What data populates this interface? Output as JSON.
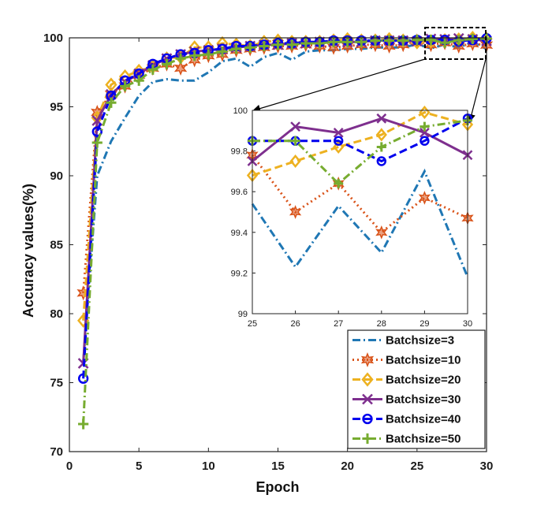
{
  "chart_data": {
    "type": "line",
    "xlabel": "Epoch",
    "ylabel": "Accuracy values(%)",
    "xlim": [
      0,
      30
    ],
    "ylim": [
      70,
      100
    ],
    "xticks": [
      "0",
      "5",
      "10",
      "15",
      "20",
      "25",
      "30"
    ],
    "yticks": [
      "70",
      "75",
      "80",
      "85",
      "90",
      "95",
      "100"
    ],
    "grid": false,
    "legend_position": "bottom-right",
    "series": [
      {
        "name": "Batchsize=3",
        "color": "#1f77b4",
        "linestyle": "dashdot",
        "marker": "none",
        "x": [
          1,
          2,
          3,
          4,
          5,
          6,
          7,
          8,
          9,
          10,
          11,
          12,
          13,
          14,
          15,
          16,
          17,
          18,
          19,
          20,
          21,
          22,
          23,
          24,
          25,
          26,
          27,
          28,
          29,
          30
        ],
        "y": [
          76.5,
          90.0,
          92.5,
          94.2,
          95.8,
          96.8,
          97.0,
          96.9,
          96.9,
          97.5,
          98.3,
          98.5,
          97.9,
          98.6,
          98.9,
          98.4,
          99.0,
          99.1,
          99.1,
          99.2,
          99.2,
          99.3,
          99.3,
          99.3,
          99.54,
          99.23,
          99.53,
          99.3,
          99.7,
          99.18
        ]
      },
      {
        "name": "Batchsize=10",
        "color": "#d95319",
        "linestyle": "dotted",
        "marker": "star",
        "x": [
          1,
          2,
          3,
          4,
          5,
          6,
          7,
          8,
          9,
          10,
          11,
          12,
          13,
          14,
          15,
          16,
          17,
          18,
          19,
          20,
          21,
          22,
          23,
          24,
          25,
          26,
          27,
          28,
          29,
          30
        ],
        "y": [
          81.5,
          94.6,
          95.9,
          96.5,
          97.3,
          97.8,
          98.1,
          97.8,
          98.4,
          98.7,
          98.8,
          99.1,
          99.2,
          99.3,
          99.4,
          99.4,
          99.5,
          99.4,
          99.3,
          99.4,
          99.5,
          99.5,
          99.4,
          99.5,
          99.78,
          99.5,
          99.64,
          99.4,
          99.57,
          99.47
        ]
      },
      {
        "name": "Batchsize=20",
        "color": "#edb120",
        "linestyle": "dashed",
        "marker": "diamond",
        "x": [
          1,
          2,
          3,
          4,
          5,
          6,
          7,
          8,
          9,
          10,
          11,
          12,
          13,
          14,
          15,
          16,
          17,
          18,
          19,
          20,
          21,
          22,
          23,
          24,
          25,
          26,
          27,
          28,
          29,
          30
        ],
        "y": [
          79.5,
          94.2,
          96.6,
          97.2,
          97.6,
          97.9,
          98.5,
          98.6,
          99.3,
          99.3,
          99.6,
          99.5,
          99.4,
          99.7,
          99.8,
          99.7,
          99.7,
          99.7,
          99.8,
          99.9,
          99.8,
          99.8,
          99.9,
          99.8,
          99.68,
          99.75,
          99.82,
          99.88,
          99.99,
          99.93
        ]
      },
      {
        "name": "Batchsize=30",
        "color": "#7e2f8e",
        "linestyle": "solid",
        "marker": "x",
        "x": [
          1,
          2,
          3,
          4,
          5,
          6,
          7,
          8,
          9,
          10,
          11,
          12,
          13,
          14,
          15,
          16,
          17,
          18,
          19,
          20,
          21,
          22,
          23,
          24,
          25,
          26,
          27,
          28,
          29,
          30
        ],
        "y": [
          76.4,
          94.0,
          95.9,
          96.8,
          97.4,
          98.0,
          98.5,
          98.8,
          99.0,
          99.1,
          99.2,
          99.3,
          99.4,
          99.5,
          99.5,
          99.6,
          99.6,
          99.7,
          99.7,
          99.7,
          99.7,
          99.8,
          99.8,
          99.8,
          99.75,
          99.92,
          99.89,
          99.96,
          99.89,
          99.78
        ]
      },
      {
        "name": "Batchsize=40",
        "color": "#0000ee",
        "linestyle": "dashed",
        "marker": "circle",
        "x": [
          1,
          2,
          3,
          4,
          5,
          6,
          7,
          8,
          9,
          10,
          11,
          12,
          13,
          14,
          15,
          16,
          17,
          18,
          19,
          20,
          21,
          22,
          23,
          24,
          25,
          26,
          27,
          28,
          29,
          30
        ],
        "y": [
          75.3,
          93.2,
          95.8,
          96.9,
          97.4,
          98.1,
          98.5,
          98.8,
          98.9,
          99.1,
          99.2,
          99.4,
          99.4,
          99.5,
          99.6,
          99.6,
          99.7,
          99.7,
          99.8,
          99.8,
          99.8,
          99.8,
          99.8,
          99.8,
          99.85,
          99.85,
          99.85,
          99.75,
          99.85,
          99.96
        ]
      },
      {
        "name": "Batchsize=50",
        "color": "#77ac30",
        "linestyle": "dashdot",
        "marker": "plus",
        "x": [
          1,
          2,
          3,
          4,
          5,
          6,
          7,
          8,
          9,
          10,
          11,
          12,
          13,
          14,
          15,
          16,
          17,
          18,
          19,
          20,
          21,
          22,
          23,
          24,
          25,
          26,
          27,
          28,
          29,
          30
        ],
        "y": [
          72.0,
          92.4,
          95.3,
          96.5,
          96.9,
          97.7,
          98.1,
          98.5,
          98.7,
          98.8,
          99.0,
          99.2,
          99.3,
          99.4,
          99.5,
          99.5,
          99.6,
          99.6,
          99.7,
          99.7,
          99.7,
          99.8,
          99.8,
          99.8,
          99.85,
          99.85,
          99.64,
          99.82,
          99.92,
          99.95
        ]
      }
    ],
    "inset": {
      "xlim": [
        25,
        30
      ],
      "ylim": [
        99.0,
        100.0
      ],
      "xticks": [
        "25",
        "26",
        "27",
        "28",
        "29",
        "30"
      ],
      "yticks": [
        "99",
        "99.2",
        "99.4",
        "99.6",
        "99.8",
        "100"
      ]
    }
  }
}
